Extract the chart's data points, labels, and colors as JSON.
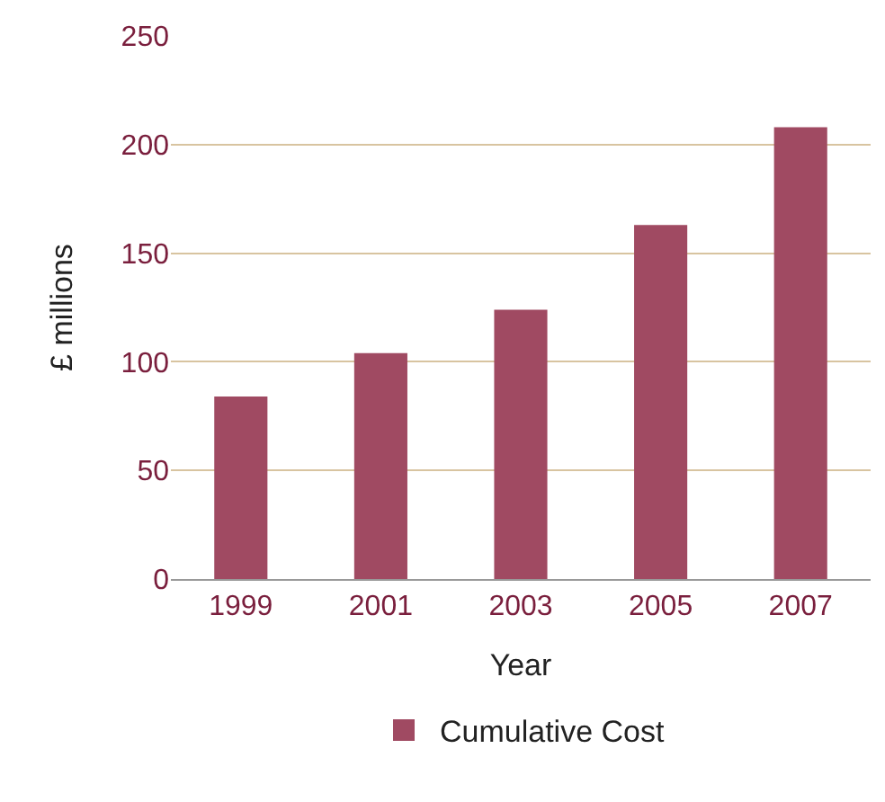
{
  "chart_data": {
    "type": "bar",
    "xlabel": "Year",
    "ylabel": "£ millions",
    "categories": [
      "1999",
      "2001",
      "2003",
      "2005",
      "2007"
    ],
    "series": [
      {
        "name": "Cumulative Cost",
        "color": "#a04a62",
        "values": [
          84,
          104,
          124,
          163,
          208
        ]
      }
    ],
    "ylim": [
      0,
      250
    ],
    "yticks": [
      0,
      50,
      100,
      150,
      200,
      250
    ],
    "grid": "y",
    "legend": "bottom"
  }
}
